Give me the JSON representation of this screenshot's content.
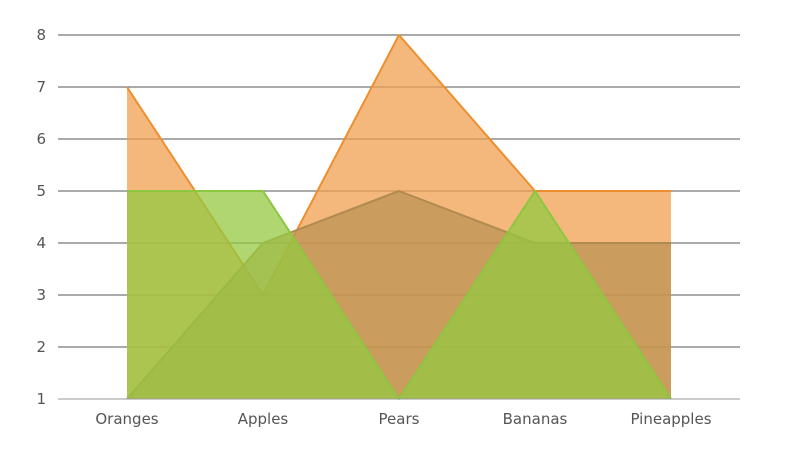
{
  "chart_data": {
    "type": "area",
    "categories": [
      "Oranges",
      "Apples",
      "Pears",
      "Bananas",
      "Pineapples"
    ],
    "series": [
      {
        "values": [
          7,
          3,
          8,
          5,
          5
        ],
        "color": "#ED8F2E",
        "fill": "#F0A050",
        "opacity": 0.75
      },
      {
        "values": [
          1,
          4,
          5,
          4,
          4
        ],
        "color": "#B08A50",
        "fill": "#B89050",
        "opacity": 0.7
      },
      {
        "values": [
          5,
          5,
          1,
          5,
          1
        ],
        "color": "#8DC63F",
        "fill": "#94C841",
        "opacity": 0.75
      }
    ],
    "ylim": [
      1,
      8
    ],
    "yticks": [
      1,
      2,
      3,
      4,
      5,
      6,
      7,
      8
    ],
    "grid": true,
    "title": "",
    "xlabel": "",
    "ylabel": ""
  }
}
